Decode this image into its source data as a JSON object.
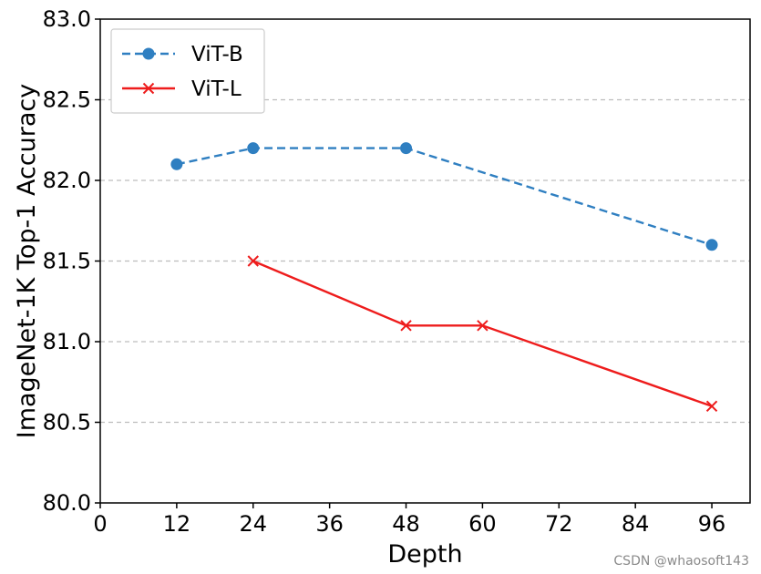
{
  "chart_data": {
    "type": "line",
    "title": "",
    "xlabel": "Depth",
    "ylabel": "ImageNet-1K Top-1 Accuracy",
    "xlim": [
      0,
      102
    ],
    "ylim": [
      80.0,
      83.0
    ],
    "x_ticks": [
      0,
      12,
      24,
      36,
      48,
      60,
      72,
      84,
      96
    ],
    "x_tick_labels": [
      "0",
      "12",
      "24",
      "36",
      "48",
      "60",
      "72",
      "84",
      "96"
    ],
    "y_ticks": [
      80.0,
      80.5,
      81.0,
      81.5,
      82.0,
      82.5,
      83.0
    ],
    "y_tick_labels": [
      "80.0",
      "80.5",
      "81.0",
      "81.5",
      "82.0",
      "82.5",
      "83.0"
    ],
    "grid": "horizontal dashed",
    "legend_position": "top-left",
    "series": [
      {
        "name": "ViT-B",
        "x": [
          12,
          24,
          48,
          96
        ],
        "y": [
          82.1,
          82.2,
          82.2,
          81.6
        ],
        "color": "#2f7fc1",
        "line_style": "dashed",
        "marker": "circle"
      },
      {
        "name": "ViT-L",
        "x": [
          24,
          48,
          60,
          96
        ],
        "y": [
          81.5,
          81.1,
          81.1,
          80.6
        ],
        "color": "#ee1c1c",
        "line_style": "solid",
        "marker": "x"
      }
    ]
  },
  "watermark": "CSDN @whaosoft143"
}
